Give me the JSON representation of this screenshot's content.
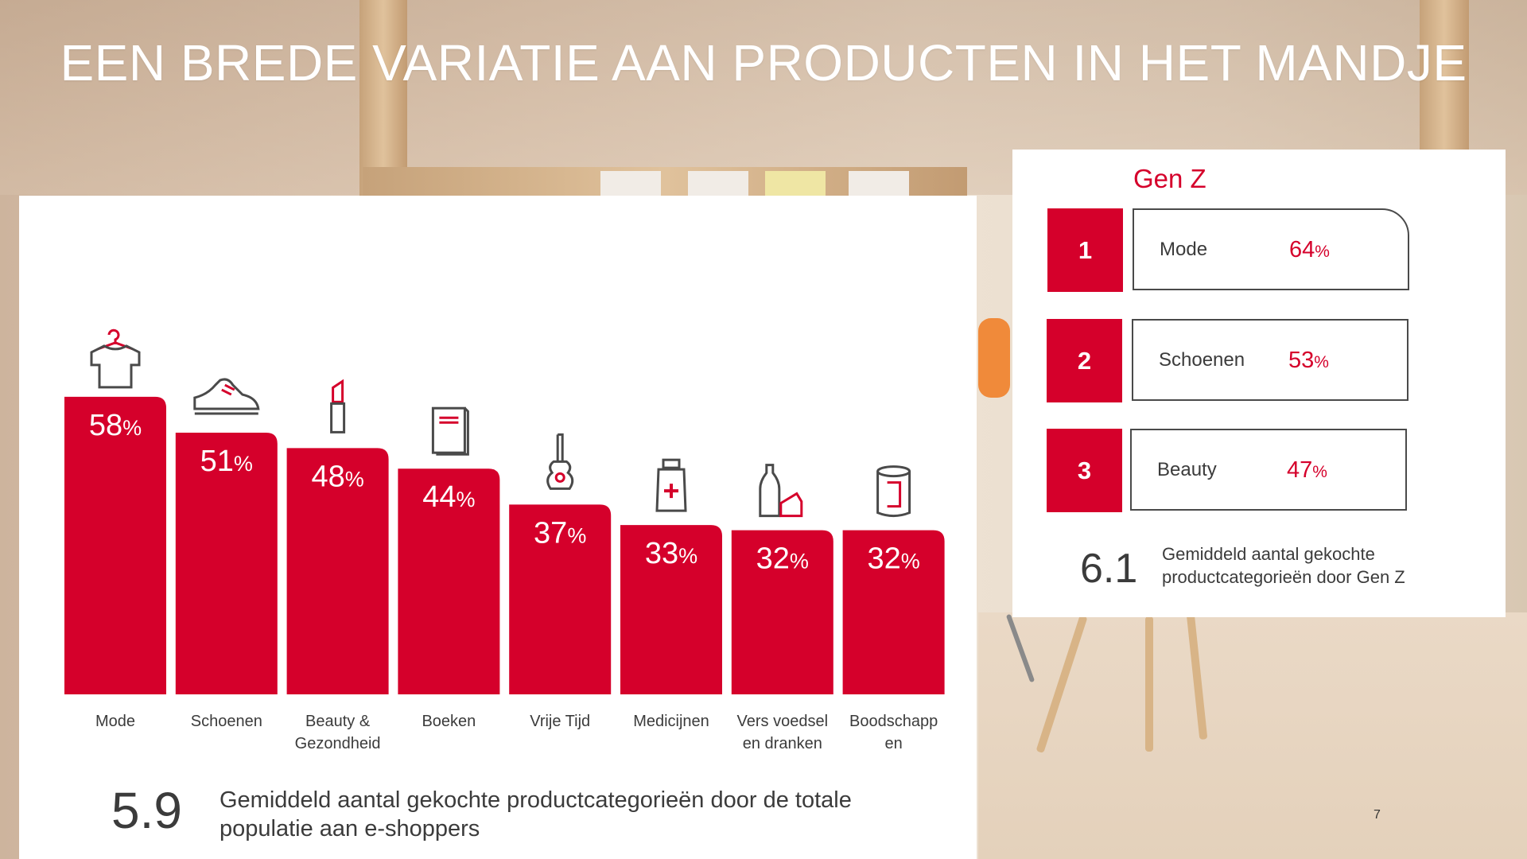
{
  "title": "EEN BREDE VARIATIE AAN PRODUCTEN IN HET MANDJE",
  "colors": {
    "accent": "#d5002b",
    "text": "#3b3b3b",
    "panel": "#ffffff"
  },
  "chart_data": {
    "type": "bar",
    "categories": [
      "Mode",
      "Schoenen",
      "Beauty & Gezondheid",
      "Boeken",
      "Vrije Tijd",
      "Medicijnen",
      "Vers voedsel en dranken",
      "Boodschappen"
    ],
    "category_label_lines": [
      [
        "Mode"
      ],
      [
        "Schoenen"
      ],
      [
        "Beauty &",
        "Gezondheid"
      ],
      [
        "Boeken"
      ],
      [
        "Vrije Tijd"
      ],
      [
        "Medicijnen"
      ],
      [
        "Vers voedsel",
        "en dranken"
      ],
      [
        "Boodschapp",
        "en"
      ]
    ],
    "values": [
      58,
      51,
      48,
      44,
      37,
      33,
      32,
      32
    ],
    "value_unit": "%",
    "icons": [
      "tshirt-hanger-icon",
      "sneaker-icon",
      "lipstick-icon",
      "book-icon",
      "guitar-icon",
      "medicine-bottle-icon",
      "bottle-cheese-icon",
      "can-icon"
    ],
    "title": "",
    "xlabel": "",
    "ylabel": "",
    "ylim": [
      0,
      60
    ],
    "grid": false,
    "legend": "none"
  },
  "average_total": {
    "value": "5.9",
    "text": "Gemiddeld aantal gekochte productcategorieën door de totale populatie aan e-shoppers"
  },
  "genz": {
    "title": "Gen Z",
    "items": [
      {
        "rank": "1",
        "name": "Mode",
        "value": "64",
        "unit": "%"
      },
      {
        "rank": "2",
        "name": "Schoenen",
        "value": "53",
        "unit": "%"
      },
      {
        "rank": "3",
        "name": "Beauty",
        "value": "47",
        "unit": "%"
      }
    ],
    "average_value": "6.1",
    "average_text": "Gemiddeld aantal gekochte productcategorieën door Gen Z"
  },
  "page_number": "7"
}
